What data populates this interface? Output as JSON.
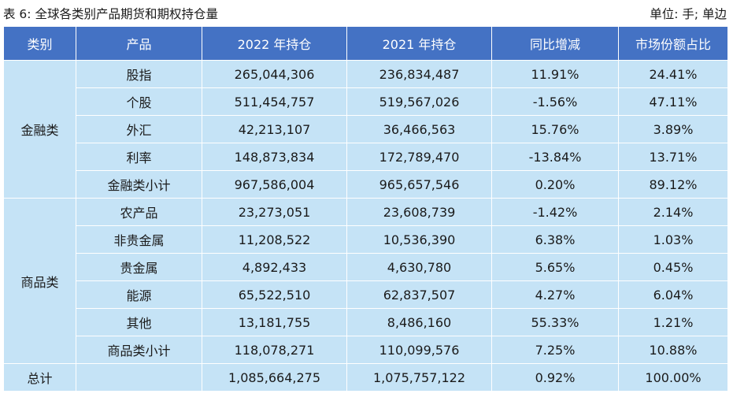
{
  "caption": {
    "title": "表 6: 全球各类别产品期货和期权持仓量",
    "unit": "单位: 手; 单边"
  },
  "headers": [
    "类别",
    "产品",
    "2022 年持仓",
    "2021 年持仓",
    "同比增减",
    "市场份额占比"
  ],
  "groups": [
    {
      "name": "金融类",
      "rows": [
        [
          "股指",
          "265,044,306",
          "236,834,487",
          "11.91%",
          "24.41%"
        ],
        [
          "个股",
          "511,454,757",
          "519,567,026",
          "-1.56%",
          "47.11%"
        ],
        [
          "外汇",
          "42,213,107",
          "36,466,563",
          "15.76%",
          "3.89%"
        ],
        [
          "利率",
          "148,873,834",
          "172,789,470",
          "-13.84%",
          "13.71%"
        ],
        [
          "金融类小计",
          "967,586,004",
          "965,657,546",
          "0.20%",
          "89.12%"
        ]
      ]
    },
    {
      "name": "商品类",
      "rows": [
        [
          "农产品",
          "23,273,051",
          "23,608,739",
          "-1.42%",
          "2.14%"
        ],
        [
          "非贵金属",
          "11,208,522",
          "10,536,390",
          "6.38%",
          "1.03%"
        ],
        [
          "贵金属",
          "4,892,433",
          "4,630,780",
          "5.65%",
          "0.45%"
        ],
        [
          "能源",
          "65,522,510",
          "62,837,507",
          "4.27%",
          "6.04%"
        ],
        [
          "其他",
          "13,181,755",
          "8,486,160",
          "55.33%",
          "1.21%"
        ],
        [
          "商品类小计",
          "118,078,271",
          "110,099,576",
          "7.25%",
          "10.88%"
        ]
      ]
    }
  ],
  "total": [
    "总计",
    "",
    "1,085,664,275",
    "1,075,757,122",
    "0.92%",
    "100.00%"
  ]
}
